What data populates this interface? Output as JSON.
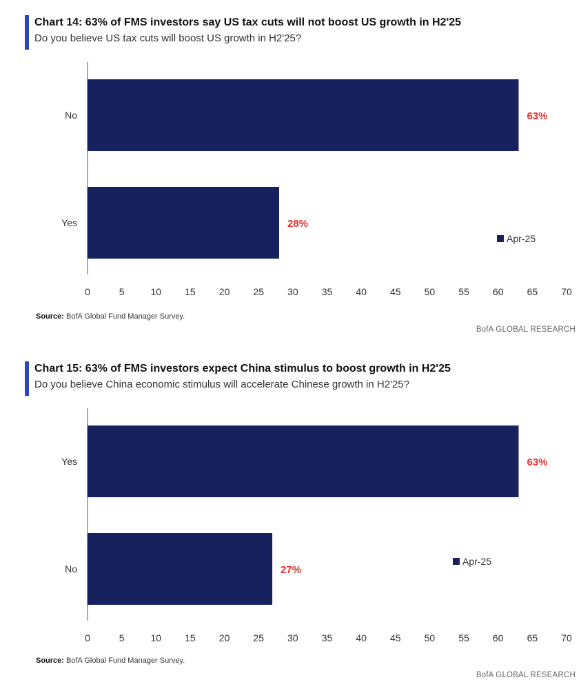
{
  "colors": {
    "accent": "#2c45c8",
    "bar": "#16215e",
    "label_red": "#e0322b"
  },
  "charts": [
    {
      "title": "Chart 14: 63% of FMS investors say US tax cuts will not boost US growth in H2'25",
      "subtitle": "Do you believe US tax cuts will boost US growth in H2'25?",
      "source_label": "Source:",
      "source_text": "BofA Global Fund Manager Survey.",
      "footer": "BofA GLOBAL RESEARCH"
    },
    {
      "title": "Chart 15: 63% of FMS investors expect China stimulus to boost growth in H2'25",
      "subtitle": "Do you believe China economic stimulus will accelerate Chinese growth in H2'25?",
      "source_label": "Source:",
      "source_text": "BofA Global Fund Manager Survey.",
      "footer": "BofA GLOBAL RESEARCH"
    }
  ],
  "chart_data": [
    {
      "type": "bar",
      "orientation": "horizontal",
      "title": "Chart 14: 63% of FMS investors say US tax cuts will not boost US growth in H2'25",
      "subtitle": "Do you believe US tax cuts will boost US growth in H2'25?",
      "categories": [
        "No",
        "Yes"
      ],
      "series": [
        {
          "name": "Apr-25",
          "values": [
            63,
            28
          ]
        }
      ],
      "data_labels": [
        "63%",
        "28%"
      ],
      "xlim": [
        0,
        70
      ],
      "xticks": [
        0,
        5,
        10,
        15,
        20,
        25,
        30,
        35,
        40,
        45,
        50,
        55,
        60,
        65,
        70
      ],
      "xlabel": "",
      "ylabel": "",
      "grid": false,
      "legend": "right"
    },
    {
      "type": "bar",
      "orientation": "horizontal",
      "title": "Chart 15: 63% of FMS investors expect China stimulus to boost growth in H2'25",
      "subtitle": "Do you believe China economic stimulus will accelerate Chinese growth in H2'25?",
      "categories": [
        "Yes",
        "No"
      ],
      "series": [
        {
          "name": "Apr-25",
          "values": [
            63,
            27
          ]
        }
      ],
      "data_labels": [
        "63%",
        "27%"
      ],
      "xlim": [
        0,
        70
      ],
      "xticks": [
        0,
        5,
        10,
        15,
        20,
        25,
        30,
        35,
        40,
        45,
        50,
        55,
        60,
        65,
        70
      ],
      "xlabel": "",
      "ylabel": "",
      "grid": false,
      "legend": "right"
    }
  ]
}
